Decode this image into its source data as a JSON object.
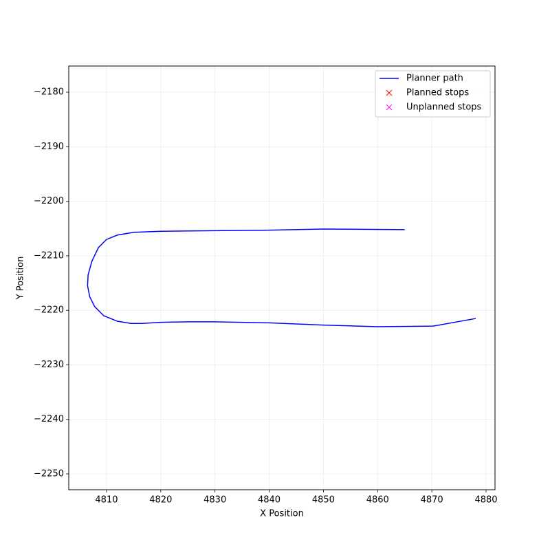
{
  "chart_data": {
    "type": "line",
    "xlabel": "X Position",
    "ylabel": "Y Position",
    "xlim": [
      4803.03,
      4881.65
    ],
    "ylim": [
      -2252.9,
      -2175.2
    ],
    "xticks": [
      4810,
      4820,
      4830,
      4840,
      4850,
      4860,
      4870,
      4880
    ],
    "yticks": [
      {
        "value": -2180,
        "label": "−2180"
      },
      {
        "value": -2190,
        "label": "−2190"
      },
      {
        "value": -2200,
        "label": "−2200"
      },
      {
        "value": -2210,
        "label": "−2210"
      },
      {
        "value": -2220,
        "label": "−2220"
      },
      {
        "value": -2230,
        "label": "−2230"
      },
      {
        "value": -2240,
        "label": "−2240"
      },
      {
        "value": -2250,
        "label": "−2250"
      }
    ],
    "grid": true,
    "legend": "upper right",
    "series": [
      {
        "name": "Planner path",
        "color": "#0000ff",
        "marker": "line",
        "x": [
          4865,
          4850,
          4840,
          4830,
          4820,
          4815,
          4812,
          4810,
          4808.5,
          4807.3,
          4806.6,
          4806.5,
          4806.9,
          4807.8,
          4809.5,
          4812,
          4814.5,
          4816.5,
          4820,
          4825,
          4830,
          4840,
          4850,
          4860,
          4870.2,
          4878.1
        ],
        "values": [
          -2205.2,
          -2205.1,
          -2205.3,
          -2205.4,
          -2205.5,
          -2205.7,
          -2206.2,
          -2207,
          -2208.5,
          -2211,
          -2213.5,
          -2215.5,
          -2217.5,
          -2219.3,
          -2221,
          -2222,
          -2222.4,
          -2222.4,
          -2222.2,
          -2222.1,
          -2222.1,
          -2222.3,
          -2222.7,
          -2223,
          -2222.9,
          -2221.5
        ]
      },
      {
        "name": "Planned stops",
        "color": "#ff0000",
        "marker": "x",
        "x": [],
        "values": []
      },
      {
        "name": "Unplanned stops",
        "color": "#ff00ff",
        "marker": "x",
        "x": [],
        "values": []
      }
    ]
  }
}
